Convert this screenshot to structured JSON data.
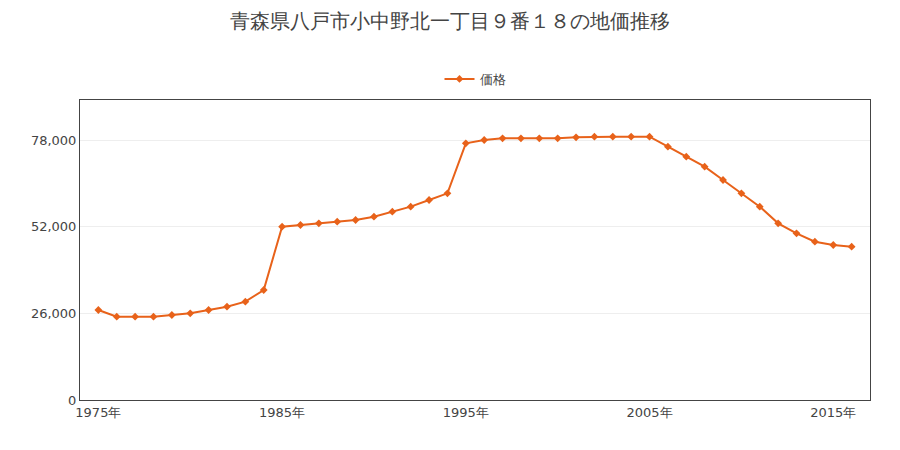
{
  "chart_data": {
    "type": "line",
    "title": "青森県八戸市小中野北一丁目９番１８の地価推移",
    "x": [
      1975,
      1976,
      1977,
      1978,
      1979,
      1980,
      1981,
      1982,
      1983,
      1984,
      1985,
      1986,
      1987,
      1988,
      1989,
      1990,
      1991,
      1992,
      1993,
      1994,
      1995,
      1996,
      1997,
      1998,
      1999,
      2000,
      2001,
      2002,
      2003,
      2004,
      2005,
      2006,
      2007,
      2008,
      2009,
      2010,
      2011,
      2012,
      2013,
      2014,
      2015,
      2016
    ],
    "series": [
      {
        "name": "価格",
        "color": "#e8621a",
        "marker": "diamond",
        "line_style": "solid",
        "values": [
          27000,
          25000,
          25000,
          25000,
          25500,
          26000,
          27000,
          28000,
          29500,
          33000,
          52000,
          52500,
          53000,
          53500,
          54000,
          55000,
          56500,
          58000,
          60000,
          62000,
          77000,
          78000,
          78500,
          78500,
          78500,
          78500,
          78800,
          79000,
          79000,
          79000,
          79000,
          76000,
          73000,
          70000,
          66000,
          62000,
          58000,
          53000,
          50000,
          47500,
          46500,
          46000
        ]
      }
    ],
    "xlim": [
      1974,
      2017
    ],
    "xticks": [
      {
        "value": 1975,
        "label": "1975年"
      },
      {
        "value": 1985,
        "label": "1985年"
      },
      {
        "value": 1995,
        "label": "1995年"
      },
      {
        "value": 2005,
        "label": "2005年"
      },
      {
        "value": 2015,
        "label": "2015年"
      }
    ],
    "ylim": [
      0,
      90000
    ],
    "yticks": [
      0,
      {
        "value": 26000,
        "label": "26,000"
      },
      {
        "value": 52000,
        "label": "52,000"
      },
      {
        "value": 78000,
        "label": "78,000"
      }
    ],
    "grid": "y",
    "legend": "top"
  }
}
